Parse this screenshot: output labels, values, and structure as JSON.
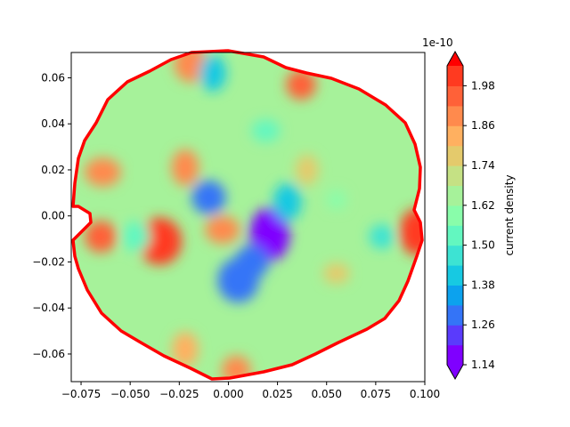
{
  "chart_data": {
    "type": "contourf",
    "title": "",
    "xlabel": "",
    "ylabel": "",
    "xlim": [
      -0.08,
      0.1
    ],
    "ylim": [
      -0.072,
      0.071
    ],
    "x_ticks": [
      -0.075,
      -0.05,
      -0.025,
      0.0,
      0.025,
      0.05,
      0.075,
      0.1
    ],
    "x_tick_labels": [
      "−0.075",
      "−0.050",
      "−0.025",
      "0.000",
      "0.025",
      "0.050",
      "0.075",
      "0.100"
    ],
    "y_ticks": [
      0.06,
      0.04,
      0.02,
      0.0,
      -0.02,
      -0.04,
      -0.06
    ],
    "y_tick_labels": [
      "0.06",
      "0.04",
      "0.02",
      "0.00",
      "−0.02",
      "−0.04",
      "−0.06"
    ],
    "boundary": {
      "shape": "irregular disc",
      "color": "#ff0000"
    },
    "colorbar": {
      "label": "current density",
      "offset_text": "1e-10",
      "colormap": "rainbow",
      "extend": "both",
      "levels": [
        1.14,
        1.2,
        1.26,
        1.32,
        1.38,
        1.44,
        1.5,
        1.56,
        1.62,
        1.68,
        1.74,
        1.8,
        1.86,
        1.92,
        1.98,
        2.04
      ],
      "tick_values": [
        1.14,
        1.26,
        1.38,
        1.5,
        1.62,
        1.74,
        1.86,
        1.98
      ],
      "tick_labels": [
        "1.14",
        "1.26",
        "1.38",
        "1.50",
        "1.62",
        "1.74",
        "1.86",
        "1.98"
      ],
      "colors": [
        "#7f00ff",
        "#5a3bfc",
        "#3474f7",
        "#0ca2ee",
        "#17c9e2",
        "#3de3d3",
        "#63f7c0",
        "#89fdaa",
        "#a6f29a",
        "#c5e184",
        "#e4ca6c",
        "#ffb060",
        "#ff8a4d",
        "#ff6138",
        "#ff3a20",
        "#ff0000"
      ]
    },
    "features": [
      {
        "x": -0.035,
        "y": -0.011,
        "value": 2.02
      },
      {
        "x": -0.065,
        "y": -0.009,
        "value": 1.96
      },
      {
        "x": 0.096,
        "y": -0.007,
        "value": 2.02
      },
      {
        "x": -0.064,
        "y": 0.019,
        "value": 1.9
      },
      {
        "x": -0.022,
        "y": 0.021,
        "value": 1.86
      },
      {
        "x": 0.037,
        "y": 0.057,
        "value": 1.92
      },
      {
        "x": -0.019,
        "y": 0.066,
        "value": 1.86
      },
      {
        "x": 0.004,
        "y": -0.067,
        "value": 1.9
      },
      {
        "x": -0.022,
        "y": -0.058,
        "value": 1.84
      },
      {
        "x": -0.003,
        "y": -0.006,
        "value": 1.88
      },
      {
        "x": 0.021,
        "y": -0.008,
        "value": 1.16
      },
      {
        "x": 0.012,
        "y": -0.02,
        "value": 1.28
      },
      {
        "x": 0.005,
        "y": -0.028,
        "value": 1.3
      },
      {
        "x": -0.01,
        "y": 0.008,
        "value": 1.28
      },
      {
        "x": -0.008,
        "y": 0.062,
        "value": 1.42
      },
      {
        "x": 0.019,
        "y": 0.037,
        "value": 1.5
      },
      {
        "x": 0.03,
        "y": 0.006,
        "value": 1.4
      },
      {
        "x": 0.078,
        "y": -0.009,
        "value": 1.46
      },
      {
        "x": -0.047,
        "y": -0.009,
        "value": 1.5
      },
      {
        "x": 0.055,
        "y": 0.007,
        "value": 1.56
      },
      {
        "x": 0.04,
        "y": 0.02,
        "value": 1.78
      },
      {
        "x": 0.055,
        "y": -0.025,
        "value": 1.74
      }
    ]
  }
}
